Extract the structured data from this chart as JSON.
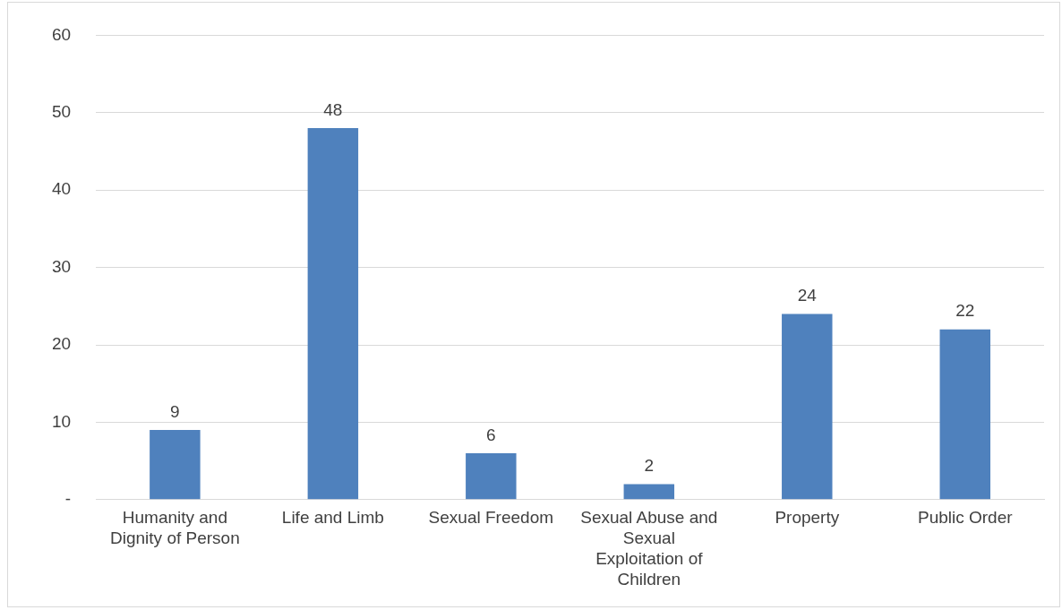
{
  "chart_data": {
    "type": "bar",
    "categories": [
      "Humanity and Dignity of Person",
      "Life and Limb",
      "Sexual Freedom",
      "Sexual Abuse and Sexual Exploitation of Children",
      "Property",
      "Public Order"
    ],
    "values": [
      9,
      48,
      6,
      2,
      24,
      22
    ],
    "color": "#4f81bd",
    "ylim": [
      0,
      60
    ],
    "yticks": [
      {
        "value": 0,
        "label": "-"
      },
      10,
      20,
      30,
      40,
      50,
      60
    ],
    "grid": "y",
    "data_labels": true
  }
}
